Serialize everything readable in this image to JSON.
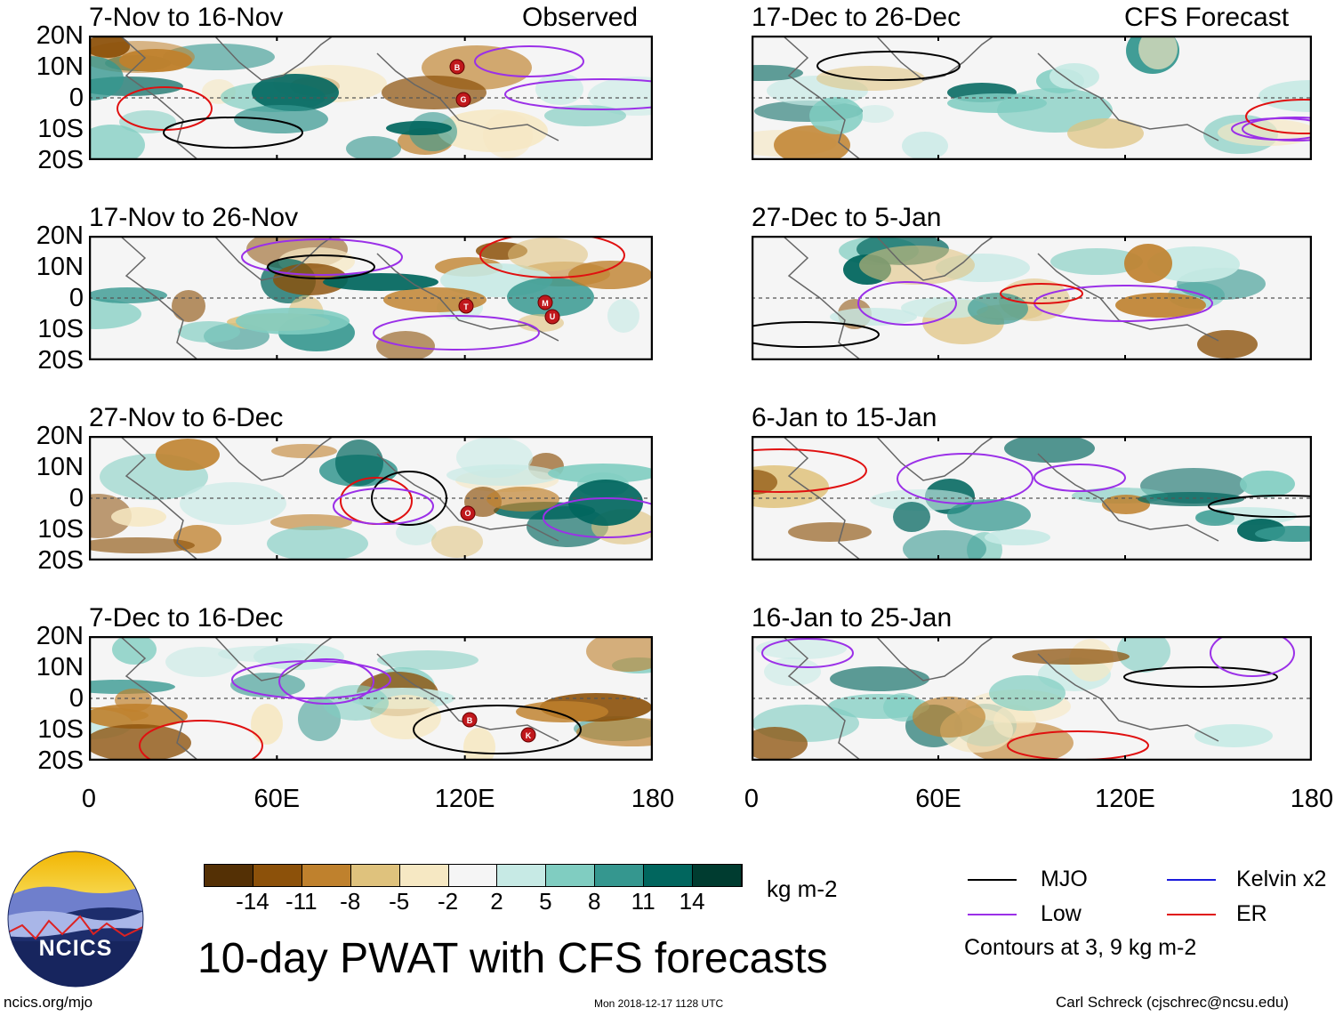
{
  "title": "10-day PWAT with CFS forecasts",
  "site": "ncics.org/mjo",
  "timestamp": "Mon 2018-12-17 1128 UTC",
  "author": "Carl Schreck (cjschrec@ncsu.edu)",
  "logo_text": "NCICS",
  "units": "kg m-2",
  "column_labels": {
    "left": "Observed",
    "right": "CFS Forecast"
  },
  "contour_note": "Contours at 3, 9 kg m-2",
  "legend": [
    {
      "name": "MJO",
      "color": "#000000"
    },
    {
      "name": "Kelvin x2",
      "color": "#1b1bdc"
    },
    {
      "name": "Low",
      "color": "#9b30e8"
    },
    {
      "name": "ER",
      "color": "#e01010"
    }
  ],
  "colorbar": {
    "colors": [
      "#543005",
      "#8c510a",
      "#bf812d",
      "#dfc27d",
      "#f6e8c3",
      "#f5f5f5",
      "#c7eae5",
      "#80cdc1",
      "#35978f",
      "#01665e",
      "#003c30"
    ],
    "labels": [
      "-14",
      "-11",
      "-8",
      "-5",
      "-2",
      "2",
      "5",
      "8",
      "11",
      "14"
    ]
  },
  "chart_data": {
    "type": "heatmap",
    "variable": "Precipitable water (PWAT) anomaly",
    "lat_range": [
      -20,
      20
    ],
    "lon_range": [
      0,
      180
    ],
    "y_ticks": [
      "20N",
      "10N",
      "0",
      "10S",
      "20S"
    ],
    "x_ticks": [
      "0",
      "60E",
      "120E",
      "180"
    ],
    "panels": [
      {
        "period": "7-Nov to 16-Nov",
        "source": "Observed",
        "cyclones": [
          "G",
          "B"
        ]
      },
      {
        "period": "17-Nov to 26-Nov",
        "source": "Observed",
        "cyclones": [
          "T",
          "U",
          "M"
        ]
      },
      {
        "period": "27-Nov to 6-Dec",
        "source": "Observed",
        "cyclones": [
          "O"
        ]
      },
      {
        "period": "7-Dec to 16-Dec",
        "source": "Observed",
        "cyclones": [
          "B",
          "K"
        ]
      },
      {
        "period": "17-Dec to 26-Dec",
        "source": "CFS Forecast",
        "cyclones": []
      },
      {
        "period": "27-Dec to 5-Jan",
        "source": "CFS Forecast",
        "cyclones": []
      },
      {
        "period": "6-Jan to 15-Jan",
        "source": "CFS Forecast",
        "cyclones": []
      },
      {
        "period": "16-Jan to 25-Jan",
        "source": "CFS Forecast",
        "cyclones": []
      }
    ]
  }
}
